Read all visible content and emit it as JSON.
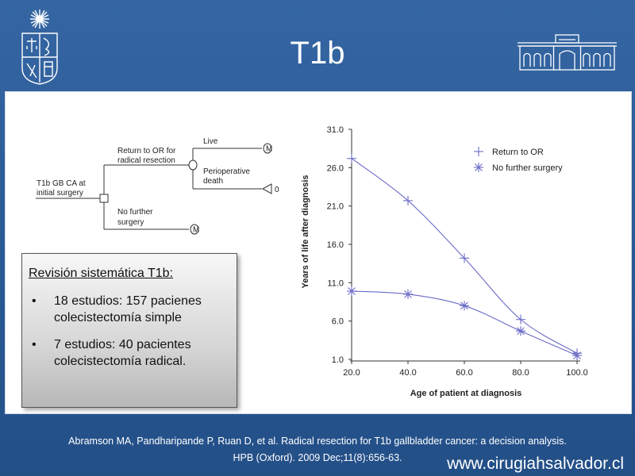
{
  "slide": {
    "title": "T1b",
    "website": "www.cirugiahsalvador.cl",
    "citation_line1": "Abramson MA, Pandharipande P, Ruan D, et al. Radical resection for T1b gallbladder cancer: a decision analysis.",
    "citation_line2": "HPB (Oxford). 2009 Dec;11(8):656-63."
  },
  "colors": {
    "background": "#2b5c96",
    "series_line": "#6a6ac8",
    "panel": "#ffffff"
  },
  "decision_tree": {
    "root_label": [
      "T1b GB CA at",
      "initial surgery"
    ],
    "branch_top_label": [
      "Return to OR for",
      "radical resection"
    ],
    "branch_bottom_label": [
      "No further",
      "surgery"
    ],
    "leaf_live": "Live",
    "leaf_death": [
      "Perioperative",
      "death"
    ],
    "leaf_death_value": "0",
    "markov_symbol": "M"
  },
  "summary_box": {
    "heading": "Revisión sistemática T1b:",
    "bullets": [
      {
        "line1": "18 estudios: 157 pacienes",
        "line2": "colecistectomía simple"
      },
      {
        "line1": "7 estudios: 40 pacientes",
        "line2": "colecistectomía radical."
      }
    ],
    "bullet_symbol": "•"
  },
  "chart_data": {
    "type": "line",
    "xlabel": "Age of patient at diagnosis",
    "ylabel": "Years of life after diagnosis",
    "xlim": [
      20,
      100
    ],
    "ylim": [
      1,
      31
    ],
    "x_ticks": [
      "20.0",
      "40.0",
      "60.0",
      "80.0",
      "100.0"
    ],
    "y_ticks": [
      "1.0",
      "6.0",
      "11.0",
      "16.0",
      "21.0",
      "26.0",
      "31.0"
    ],
    "legend_position": "top-right",
    "grid": false,
    "series": [
      {
        "name": "Return to OR",
        "marker": "+",
        "x": [
          20,
          40,
          60,
          80,
          100
        ],
        "values": [
          27.2,
          21.7,
          14.2,
          6.2,
          1.8
        ]
      },
      {
        "name": "No further surgery",
        "marker": "*",
        "x": [
          20,
          40,
          60,
          80,
          100
        ],
        "values": [
          9.9,
          9.5,
          8.0,
          4.7,
          1.5
        ]
      }
    ]
  }
}
